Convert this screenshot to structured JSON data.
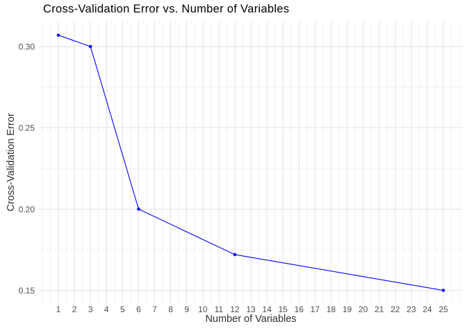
{
  "chart_data": {
    "type": "line",
    "title": "Cross-Validation Error vs. Number of Variables",
    "xlabel": "Number of Variables",
    "ylabel": "Cross-Validation Error",
    "x": [
      1,
      3,
      6,
      12,
      25
    ],
    "y": [
      0.307,
      0.3,
      0.2,
      0.172,
      0.15
    ],
    "x_ticks": [
      1,
      2,
      3,
      4,
      5,
      6,
      7,
      8,
      9,
      10,
      11,
      12,
      13,
      14,
      15,
      16,
      17,
      18,
      19,
      20,
      21,
      22,
      23,
      24,
      25
    ],
    "y_ticks": [
      0.15,
      0.2,
      0.25,
      0.3
    ],
    "y_tick_labels": [
      "0.15",
      "0.20",
      "0.25",
      "0.30"
    ],
    "y_minor_ticks": [
      0.175,
      0.225,
      0.275
    ],
    "xlim": [
      -0.2,
      26.2
    ],
    "ylim": [
      0.1421,
      0.3154
    ],
    "grid": "major-and-minor",
    "legend": "none",
    "colors": {
      "line": "#0000FF",
      "point": "#0000FF",
      "grid_major": "#E2E2E2",
      "grid_minor": "#F0F0F0",
      "tick_label": "#4D4D4D",
      "axis_title": "#303030",
      "title": "#000000",
      "background": "#FFFFFF"
    }
  }
}
